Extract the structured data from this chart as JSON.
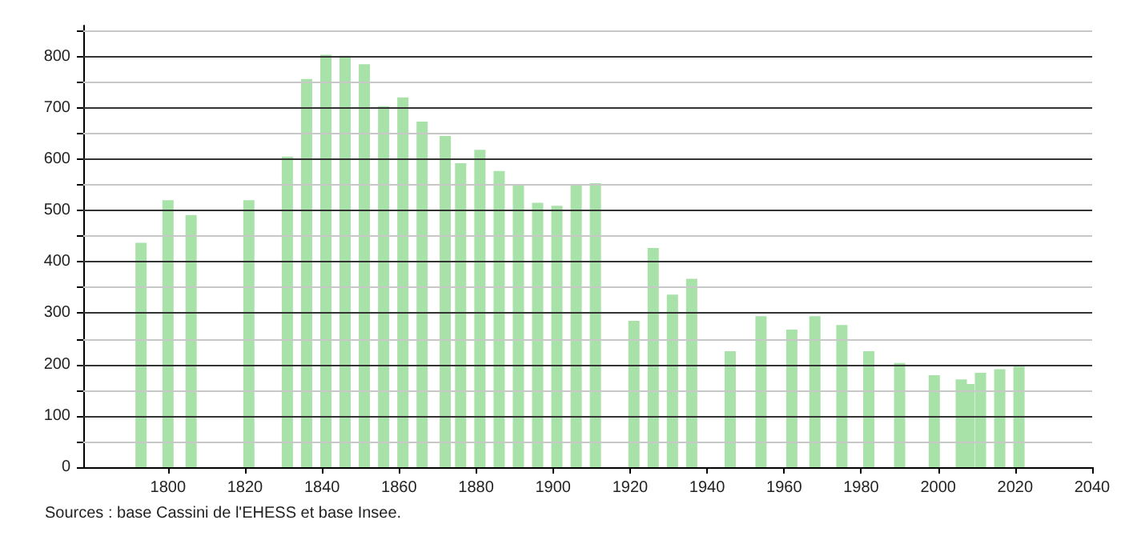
{
  "chart_data": {
    "type": "bar",
    "x": [
      1793,
      1800,
      1806,
      1821,
      1831,
      1836,
      1841,
      1846,
      1851,
      1856,
      1861,
      1866,
      1872,
      1876,
      1881,
      1886,
      1891,
      1896,
      1901,
      1906,
      1911,
      1921,
      1926,
      1931,
      1936,
      1946,
      1954,
      1962,
      1968,
      1975,
      1982,
      1990,
      1999,
      2006,
      2008,
      2011,
      2016,
      2021
    ],
    "values": [
      437,
      520,
      491,
      520,
      605,
      756,
      803,
      801,
      785,
      703,
      720,
      673,
      645,
      592,
      618,
      577,
      549,
      515,
      509,
      549,
      553,
      285,
      427,
      336,
      367,
      226,
      294,
      268,
      294,
      277,
      226,
      203,
      179,
      171,
      162,
      184,
      191,
      196
    ],
    "color": "#a9e2a9",
    "xlim": [
      1778,
      2040
    ],
    "xticks": [
      1800,
      1820,
      1840,
      1860,
      1880,
      1900,
      1920,
      1940,
      1960,
      1980,
      2000,
      2020,
      2040
    ],
    "ylim": [
      0,
      860
    ],
    "yticks": [
      0,
      {
        "value": 50,
        "label": null
      },
      100,
      {
        "value": 150,
        "label": null
      },
      200,
      {
        "value": 250,
        "label": null
      },
      300,
      {
        "value": 350,
        "label": null
      },
      400,
      {
        "value": 450,
        "label": null
      },
      500,
      {
        "value": 550,
        "label": null
      },
      600,
      {
        "value": 650,
        "label": null
      },
      700,
      {
        "value": 750,
        "label": null
      },
      800,
      {
        "value": 850,
        "label": null
      }
    ],
    "grid": "y",
    "annotations": [
      "Sources : base Cassini de l'EHESS et base Insee."
    ]
  }
}
